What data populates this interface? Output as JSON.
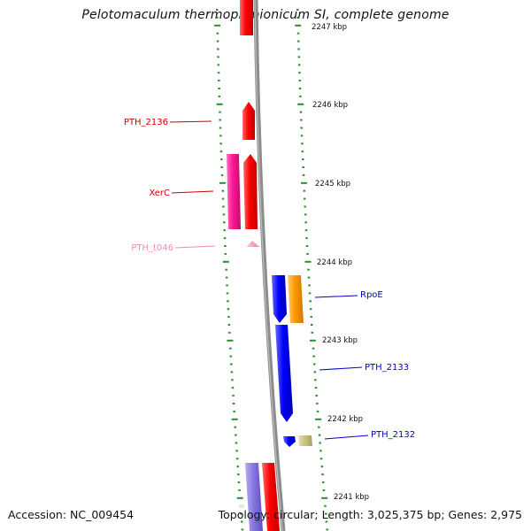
{
  "title": "Pelotomaculum thermopropionicum SI, complete genome",
  "footer": {
    "accession": "Accession: NC_009454",
    "summary": "Topology: circular; Length: 3,025,375 bp; Genes: 2,975"
  },
  "kbp_ticks": [
    "2247 kbp",
    "2246 kbp",
    "2245 kbp",
    "2244 kbp",
    "2243 kbp",
    "2242 kbp",
    "2241 kbp"
  ],
  "colors": {
    "backbone": "#8c8c8c",
    "tick_green": "#2e8b2e",
    "red_gene": "#ff0000",
    "magenta_gene": "#ff1493",
    "pink_gene": "#f4a0c0",
    "blue_gene": "#0000ff",
    "orange_gene": "#ff9900",
    "khaki_gene": "#c8c080",
    "lavender_gene": "#8878e0"
  },
  "gene_labels": [
    {
      "id": "PTH_2136",
      "text": "PTH_2136",
      "color": "#cc0000"
    },
    {
      "id": "XerC",
      "text": "XerC",
      "color": "#cc0000"
    },
    {
      "id": "PTH_t046",
      "text": "PTH_t046",
      "color": "#f08cb4"
    },
    {
      "id": "RpoE",
      "text": "RpoE",
      "color": "#0000cc"
    },
    {
      "id": "PTH_2133",
      "text": "PTH_2133",
      "color": "#0000cc"
    },
    {
      "id": "PTH_2132",
      "text": "PTH_2132",
      "color": "#0000cc"
    }
  ]
}
